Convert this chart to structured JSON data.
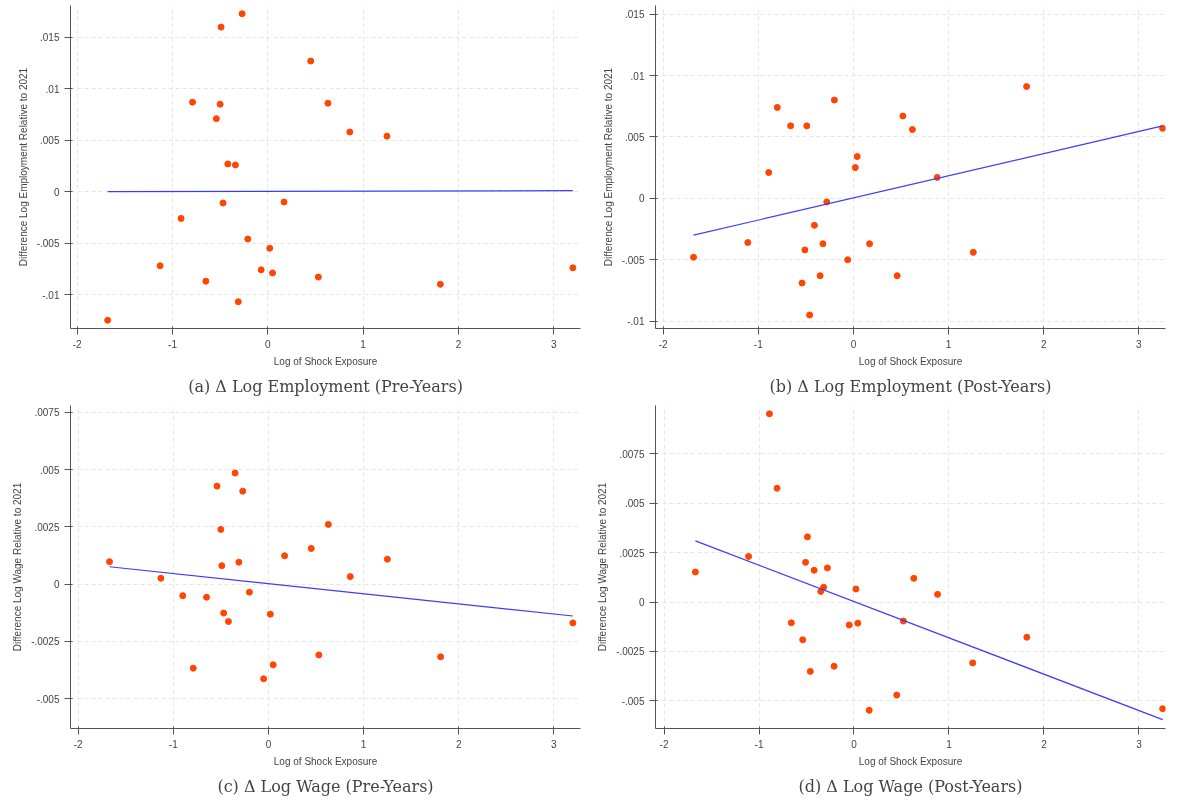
{
  "chart_data": [
    {
      "type": "scatter",
      "title": "(a) Δ Log Employment (Pre-Years)",
      "xlabel": "Log of Shock Exposure",
      "ylabel": "Difference Log Employment Relative to 2021",
      "marker": "circle",
      "grid": true,
      "xlim": [
        -2.07,
        3.28
      ],
      "ylim": [
        -0.0133,
        0.0181
      ],
      "xticks": [
        -2,
        -1,
        0,
        1,
        2,
        3
      ],
      "yticks": [
        {
          "value": -0.01,
          "label": "-.01"
        },
        {
          "value": -0.005,
          "label": "-.005"
        },
        0,
        {
          "value": 0.005,
          "label": ".005"
        },
        {
          "value": 0.01,
          "label": ".01"
        },
        {
          "value": 0.015,
          "label": ".015"
        }
      ],
      "series": [
        {
          "color": "#ff4500",
          "x": [
            -0.27,
            -0.49,
            0.45,
            -0.79,
            -0.5,
            0.63,
            -0.54,
            0.86,
            1.25,
            -0.42,
            -0.34,
            -0.47,
            0.17,
            -0.91,
            -0.21,
            0.02,
            -1.13,
            -0.07,
            0.05,
            0.53,
            -0.65,
            1.81,
            3.2,
            -0.31,
            -1.68
          ],
          "values": [
            0.0173,
            0.016,
            0.0127,
            0.0087,
            0.0085,
            0.0086,
            0.0071,
            0.0058,
            0.0054,
            0.0027,
            0.0026,
            -0.0011,
            -0.001,
            -0.0026,
            -0.0046,
            -0.0055,
            -0.0072,
            -0.0076,
            -0.0079,
            -0.0083,
            -0.0087,
            -0.009,
            -0.0074,
            -0.0107,
            -0.0125
          ]
        },
        {
          "type": "line",
          "marker": "none",
          "color": "#3b3bff",
          "x": [
            -1.68,
            3.2
          ],
          "values": [
            0.0,
            0.0001
          ]
        }
      ]
    },
    {
      "type": "scatter",
      "title": "(b) Δ Log Employment (Post-Years)",
      "xlabel": "Log of Shock Exposure",
      "ylabel": "Difference Log Employment Relative to 2021",
      "marker": "circle",
      "grid": true,
      "xlim": [
        -2.08,
        3.28
      ],
      "ylim": [
        -0.0106,
        0.0157
      ],
      "xticks": [
        -2,
        -1,
        0,
        1,
        2,
        3
      ],
      "yticks": [
        {
          "value": -0.01,
          "label": "-.01"
        },
        {
          "value": -0.005,
          "label": "-.005"
        },
        0,
        {
          "value": 0.005,
          "label": ".005"
        },
        {
          "value": 0.01,
          "label": ".01"
        },
        {
          "value": 0.015,
          "label": ".015"
        }
      ],
      "series": [
        {
          "color": "#ff4500",
          "x": [
            -0.2,
            1.82,
            -0.8,
            -0.66,
            -0.49,
            0.52,
            0.62,
            3.25,
            0.04,
            0.02,
            -0.89,
            0.88,
            -0.28,
            -0.41,
            -1.11,
            -0.51,
            -0.32,
            0.17,
            1.26,
            -1.68,
            -0.06,
            0.46,
            -0.35,
            -0.54,
            -0.46
          ],
          "values": [
            0.008,
            0.0091,
            0.0074,
            0.0059,
            0.0059,
            0.0067,
            0.0056,
            0.0057,
            0.0034,
            0.0025,
            0.0021,
            0.0017,
            -0.0003,
            -0.0022,
            -0.0036,
            -0.0042,
            -0.0037,
            -0.0037,
            -0.0044,
            -0.0048,
            -0.005,
            -0.0063,
            -0.0063,
            -0.0069,
            -0.0095
          ]
        },
        {
          "type": "line",
          "marker": "none",
          "color": "#3b3bff",
          "x": [
            -1.68,
            3.25
          ],
          "values": [
            -0.003,
            0.0059
          ]
        }
      ]
    },
    {
      "type": "scatter",
      "title": "(c) Δ Log Wage (Pre-Years)",
      "xlabel": "Log of Shock Exposure",
      "ylabel": "Difference Log Wage Relative to 2021",
      "marker": "circle",
      "grid": true,
      "xlim": [
        -2.08,
        3.28
      ],
      "ylim": [
        -0.0063,
        0.0078
      ],
      "xticks": [
        -2,
        -1,
        0,
        1,
        2,
        3
      ],
      "yticks": [
        {
          "value": -0.005,
          "label": "-.005"
        },
        {
          "value": -0.0025,
          "label": "-.0025"
        },
        0,
        {
          "value": 0.0025,
          "label": ".0025"
        },
        {
          "value": 0.005,
          "label": ".005"
        },
        {
          "value": 0.0075,
          "label": ".0075"
        }
      ],
      "series": [
        {
          "color": "#ff4500",
          "x": [
            -0.35,
            -0.54,
            -0.27,
            0.63,
            -0.5,
            0.45,
            0.17,
            1.25,
            -1.67,
            -0.49,
            -0.31,
            0.86,
            -1.13,
            -0.9,
            -0.65,
            -0.2,
            -0.47,
            -0.42,
            0.02,
            3.2,
            0.53,
            1.81,
            -0.79,
            0.05,
            -0.05
          ],
          "values": [
            0.00485,
            0.00428,
            0.00406,
            0.00261,
            0.00239,
            0.00156,
            0.00124,
            0.00109,
            0.00098,
            0.00081,
            0.00096,
            0.00033,
            0.00026,
            -0.0005,
            -0.00057,
            -0.00035,
            -0.00126,
            -0.00163,
            -0.00131,
            -0.00169,
            -0.00309,
            -0.00317,
            -0.00367,
            -0.00352,
            -0.00413
          ]
        },
        {
          "type": "line",
          "marker": "none",
          "color": "#3b3bff",
          "x": [
            -1.67,
            3.2
          ],
          "values": [
            0.00076,
            -0.00139
          ]
        }
      ]
    },
    {
      "type": "scatter",
      "title": "(d) Δ Log Wage (Post-Years)",
      "xlabel": "Log of Shock Exposure",
      "ylabel": "Difference Log Wage Relative to 2021",
      "marker": "circle",
      "grid": true,
      "xlim": [
        -2.09,
        3.28
      ],
      "ylim": [
        -0.0064,
        0.00995
      ],
      "xticks": [
        -2,
        -1,
        0,
        1,
        2,
        3
      ],
      "yticks": [
        {
          "value": -0.005,
          "label": "-.005"
        },
        {
          "value": -0.0025,
          "label": "-.0025"
        },
        0,
        {
          "value": 0.0025,
          "label": ".0025"
        },
        {
          "value": 0.005,
          "label": ".005"
        },
        {
          "value": 0.0075,
          "label": ".0075"
        }
      ],
      "series": [
        {
          "color": "#ff4500",
          "x": [
            -0.89,
            -0.81,
            -0.49,
            -1.11,
            -1.67,
            -0.51,
            -0.42,
            -0.28,
            0.63,
            -0.32,
            -0.35,
            0.02,
            0.88,
            -0.66,
            -0.05,
            0.04,
            0.52,
            -0.54,
            1.82,
            -0.21,
            -0.46,
            1.25,
            0.45,
            0.16,
            3.25
          ],
          "values": [
            0.00953,
            0.00576,
            0.0033,
            0.00231,
            0.00152,
            0.00201,
            0.00161,
            0.00173,
            0.0012,
            0.00075,
            0.00054,
            0.00066,
            0.00039,
            -0.00105,
            -0.00116,
            -0.00107,
            -0.00096,
            -0.00191,
            -0.00178,
            -0.00325,
            -0.00351,
            -0.00308,
            -0.00471,
            -0.00548,
            -0.0054
          ]
        },
        {
          "type": "line",
          "marker": "none",
          "color": "#3b3bff",
          "x": [
            -1.67,
            3.25
          ],
          "values": [
            0.0031,
            -0.00595
          ]
        }
      ]
    }
  ]
}
